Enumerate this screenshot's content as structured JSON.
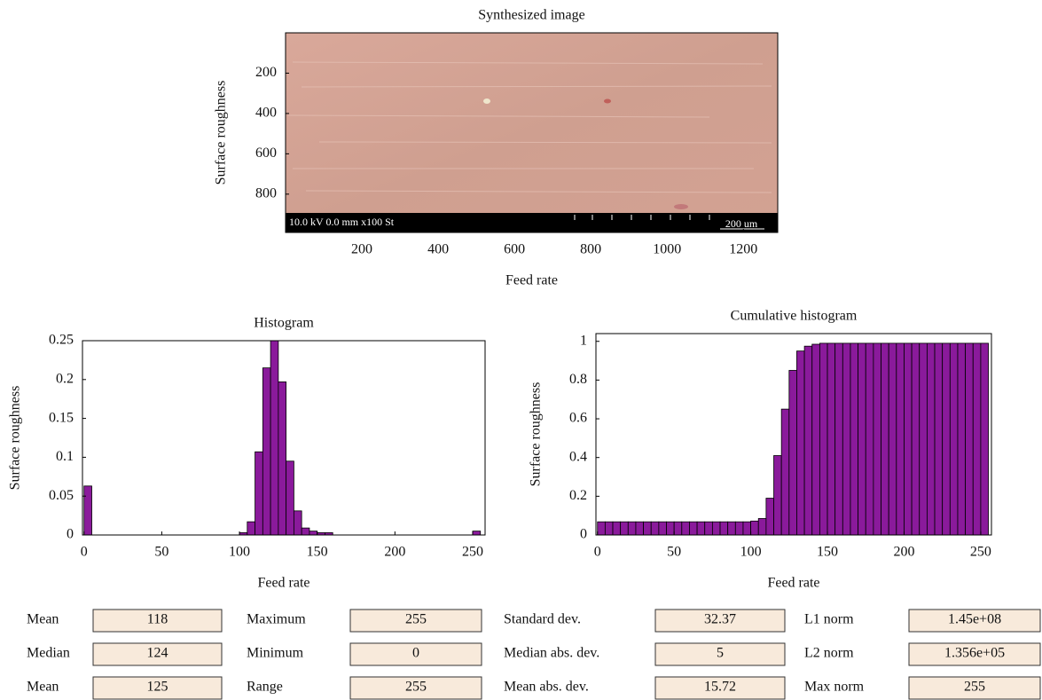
{
  "chart_data": [
    {
      "type": "image",
      "title": "Synthesized image",
      "xlabel": "Feed rate",
      "ylabel": "Surface roughness",
      "xlim": [
        0,
        1290
      ],
      "ylim": [
        0,
        990
      ],
      "y_inverted": true,
      "xticks": [
        200,
        400,
        600,
        800,
        1000,
        1200
      ],
      "yticks": [
        200,
        400,
        600,
        800
      ],
      "annotations": [
        "10.0 kV 0.0 mm x100 St",
        "200 um"
      ]
    },
    {
      "type": "histogram",
      "title": "Histogram",
      "xlabel": "Feed rate",
      "ylabel": "Surface roughness",
      "color": "#8a1a9b",
      "xlim": [
        -1,
        258
      ],
      "ylim": [
        0,
        0.25
      ],
      "xticks": [
        0,
        50,
        100,
        150,
        200,
        250
      ],
      "yticks": [
        0,
        0.05,
        0.1,
        0.15,
        0.2,
        0.25
      ],
      "bins": [
        0,
        5,
        10,
        15,
        20,
        25,
        30,
        35,
        40,
        45,
        50,
        55,
        60,
        65,
        70,
        75,
        80,
        85,
        90,
        95,
        100,
        105,
        110,
        115,
        120,
        125,
        130,
        135,
        140,
        145,
        150,
        155,
        160,
        165,
        170,
        175,
        180,
        185,
        190,
        195,
        200,
        205,
        210,
        215,
        220,
        225,
        230,
        235,
        240,
        245,
        250,
        255
      ],
      "values": [
        0.063,
        0,
        0,
        0,
        0,
        0,
        0,
        0,
        0,
        0,
        0,
        0,
        0,
        0,
        0,
        0,
        0,
        0,
        0,
        0,
        0.003,
        0.017,
        0.107,
        0.215,
        0.25,
        0.197,
        0.095,
        0.031,
        0.009,
        0.005,
        0.003,
        0.003,
        0,
        0,
        0,
        0,
        0,
        0,
        0,
        0,
        0,
        0,
        0,
        0,
        0,
        0,
        0,
        0,
        0,
        0,
        0.005
      ]
    },
    {
      "type": "histogram",
      "title": "Cumulative histogram",
      "xlabel": "Feed rate",
      "ylabel": "Surface roughness",
      "color": "#8a1a9b",
      "xlim": [
        -1,
        257
      ],
      "ylim": [
        0,
        1.04
      ],
      "xticks": [
        0,
        50,
        100,
        150,
        200,
        250
      ],
      "yticks": [
        0,
        0.2,
        0.4,
        0.6,
        0.8,
        1
      ],
      "bins": [
        0,
        5,
        10,
        15,
        20,
        25,
        30,
        35,
        40,
        45,
        50,
        55,
        60,
        65,
        70,
        75,
        80,
        85,
        90,
        95,
        100,
        105,
        110,
        115,
        120,
        125,
        130,
        135,
        140,
        145,
        150,
        155,
        160,
        165,
        170,
        175,
        180,
        185,
        190,
        195,
        200,
        205,
        210,
        215,
        220,
        225,
        230,
        235,
        240,
        245,
        250,
        255
      ],
      "values": [
        0.068,
        0.068,
        0.068,
        0.068,
        0.068,
        0.068,
        0.068,
        0.068,
        0.068,
        0.068,
        0.068,
        0.068,
        0.068,
        0.068,
        0.068,
        0.068,
        0.068,
        0.068,
        0.068,
        0.068,
        0.072,
        0.085,
        0.19,
        0.41,
        0.65,
        0.85,
        0.95,
        0.975,
        0.985,
        0.99,
        0.99,
        0.99,
        0.99,
        0.99,
        0.99,
        0.99,
        0.99,
        0.99,
        0.99,
        0.99,
        0.99,
        0.99,
        0.99,
        0.99,
        0.99,
        0.99,
        0.99,
        0.99,
        0.99,
        0.99,
        0.99
      ]
    }
  ],
  "stats": {
    "rows": [
      [
        {
          "label": "Mean",
          "value": "118"
        },
        {
          "label": "Maximum",
          "value": "255"
        },
        {
          "label": "Standard dev.",
          "value": "32.37"
        },
        {
          "label": "L1 norm",
          "value": "1.45e+08"
        }
      ],
      [
        {
          "label": "Median",
          "value": "124"
        },
        {
          "label": "Minimum",
          "value": "0"
        },
        {
          "label": "Median abs. dev.",
          "value": "5"
        },
        {
          "label": "L2 norm",
          "value": "1.356e+05"
        }
      ],
      [
        {
          "label": "Mean",
          "value": "125"
        },
        {
          "label": "Range",
          "value": "255"
        },
        {
          "label": "Mean abs. dev.",
          "value": "15.72"
        },
        {
          "label": "Max norm",
          "value": "255"
        }
      ]
    ]
  }
}
